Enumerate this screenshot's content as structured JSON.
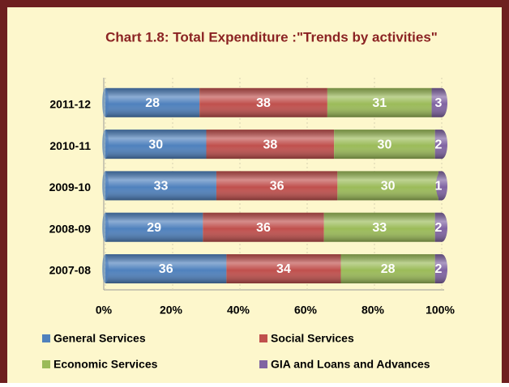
{
  "chart_data": {
    "type": "bar",
    "orientation": "horizontal",
    "stacked": true,
    "title": "Chart 1.8: Total Expenditure :\"Trends by activities\"",
    "categories": [
      "2007-08",
      "2008-09",
      "2009-10",
      "2010-11",
      "2011-12"
    ],
    "series": [
      {
        "name": "General Services",
        "color": "#4f81bd",
        "values": [
          36,
          29,
          33,
          30,
          28
        ]
      },
      {
        "name": "Social Services",
        "color": "#c0504d",
        "values": [
          34,
          36,
          36,
          38,
          38
        ]
      },
      {
        "name": "Economic Services",
        "color": "#9bbb59",
        "values": [
          28,
          33,
          30,
          30,
          31
        ]
      },
      {
        "name": "GIA and Loans and Advances",
        "color": "#8064a2",
        "values": [
          2,
          2,
          1,
          2,
          3
        ]
      }
    ],
    "xlim": [
      0,
      100
    ],
    "xticks": [
      {
        "value": 0,
        "label": "0%"
      },
      {
        "value": 20,
        "label": "20%"
      },
      {
        "value": 40,
        "label": "40%"
      },
      {
        "value": 60,
        "label": "60%"
      },
      {
        "value": 80,
        "label": "80%"
      },
      {
        "value": 100,
        "label": "100%"
      }
    ],
    "grid": true
  }
}
